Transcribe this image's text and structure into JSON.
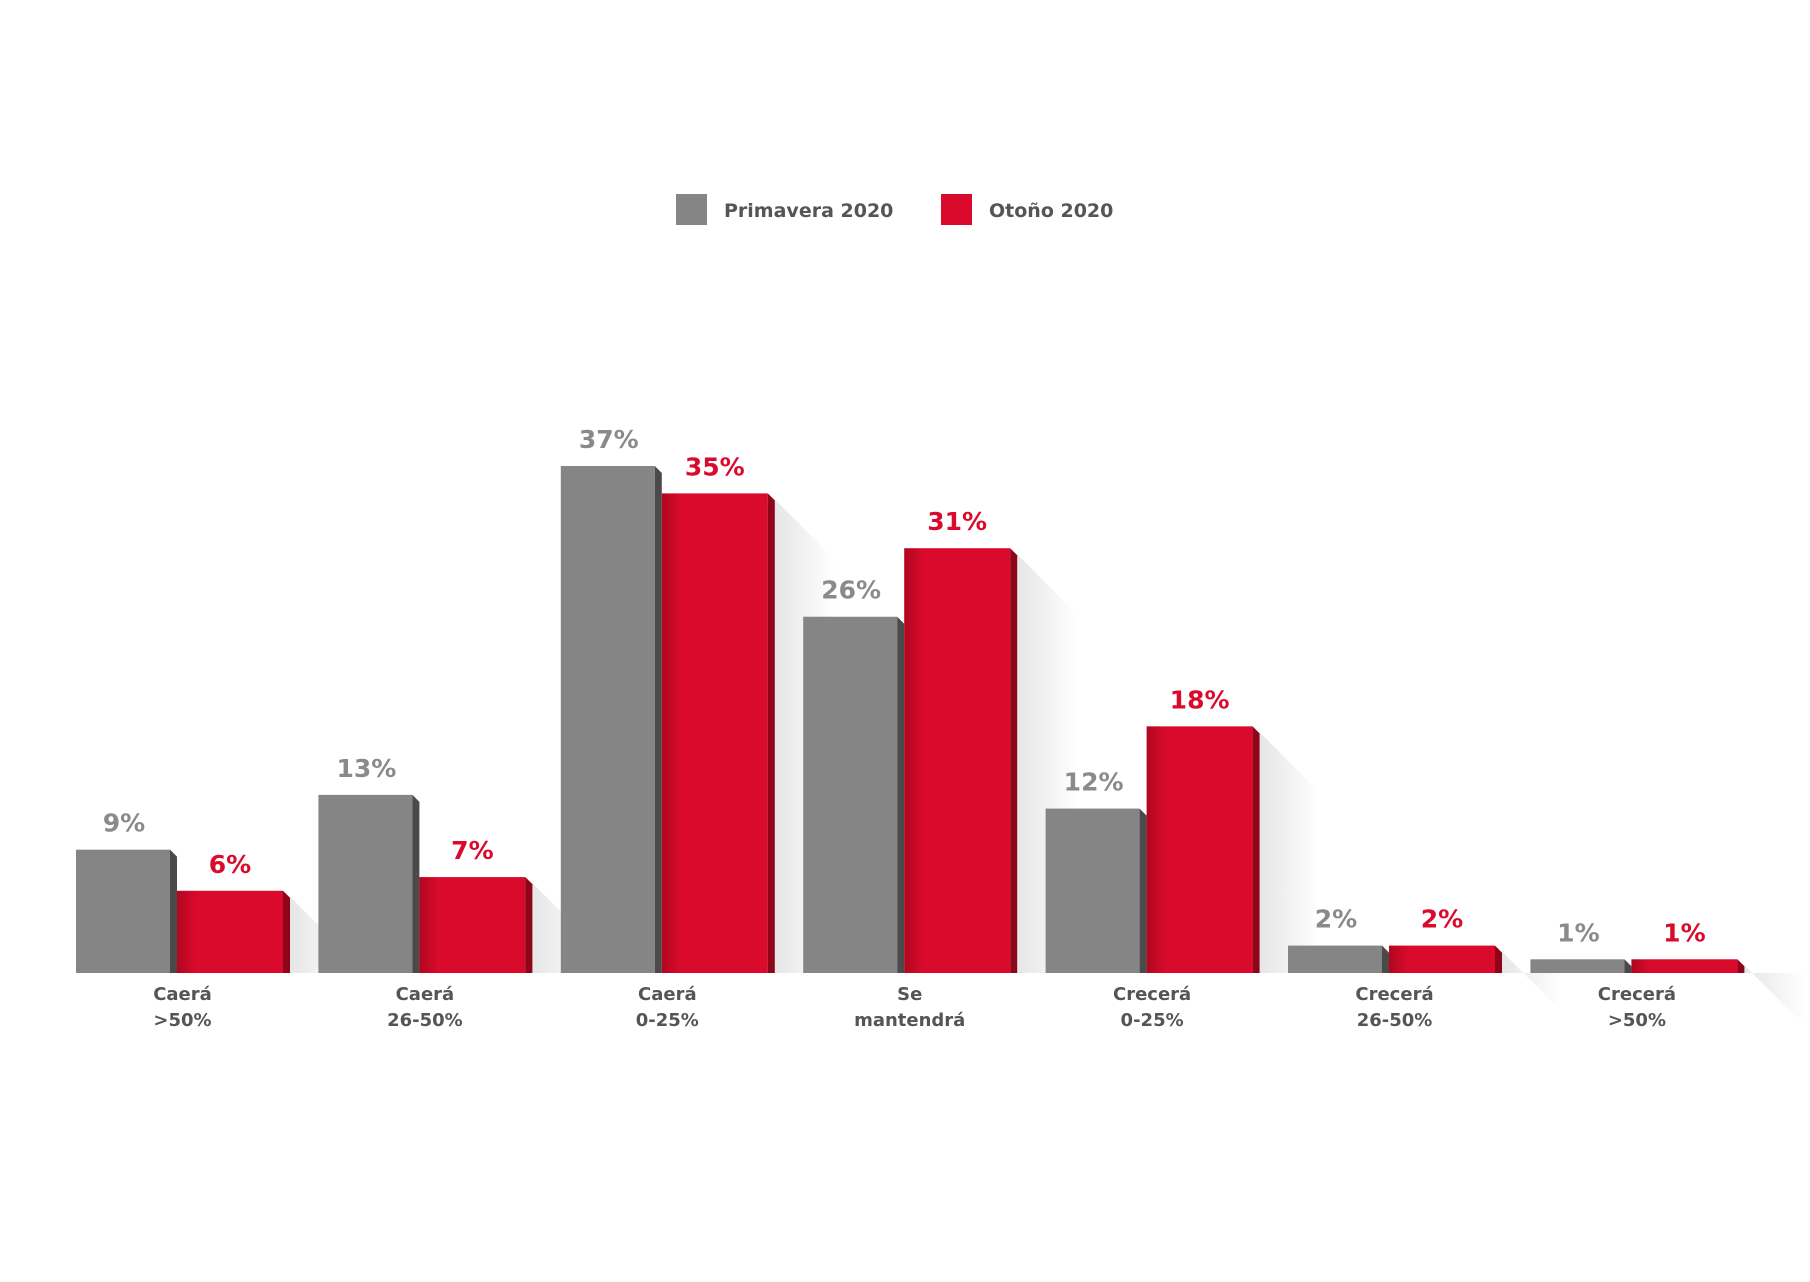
{
  "chart_data": {
    "type": "bar",
    "categories": [
      [
        "Caerá",
        ">50%"
      ],
      [
        "Caerá",
        "26-50%"
      ],
      [
        "Caerá",
        "0-25%"
      ],
      [
        "Se",
        "mantendrá"
      ],
      [
        "Crecerá",
        "0-25%"
      ],
      [
        "Crecerá",
        "26-50%"
      ],
      [
        "Crecerá",
        ">50%"
      ]
    ],
    "series": [
      {
        "name": "Primavera 2020",
        "color": "#858585",
        "values": [
          9,
          13,
          37,
          26,
          12,
          2,
          1
        ],
        "labels": [
          "9%",
          "13%",
          "37%",
          "26%",
          "12%",
          "2%",
          "1%"
        ]
      },
      {
        "name": "Otoño 2020",
        "color": "#d90a2c",
        "values": [
          6,
          7,
          35,
          31,
          18,
          2,
          1
        ],
        "labels": [
          "6%",
          "7%",
          "35%",
          "31%",
          "18%",
          "2%",
          "1%"
        ]
      }
    ],
    "title": "",
    "xlabel": "",
    "ylabel": "",
    "ylim": [
      0,
      37
    ],
    "grid": false,
    "legend": "top-center"
  }
}
